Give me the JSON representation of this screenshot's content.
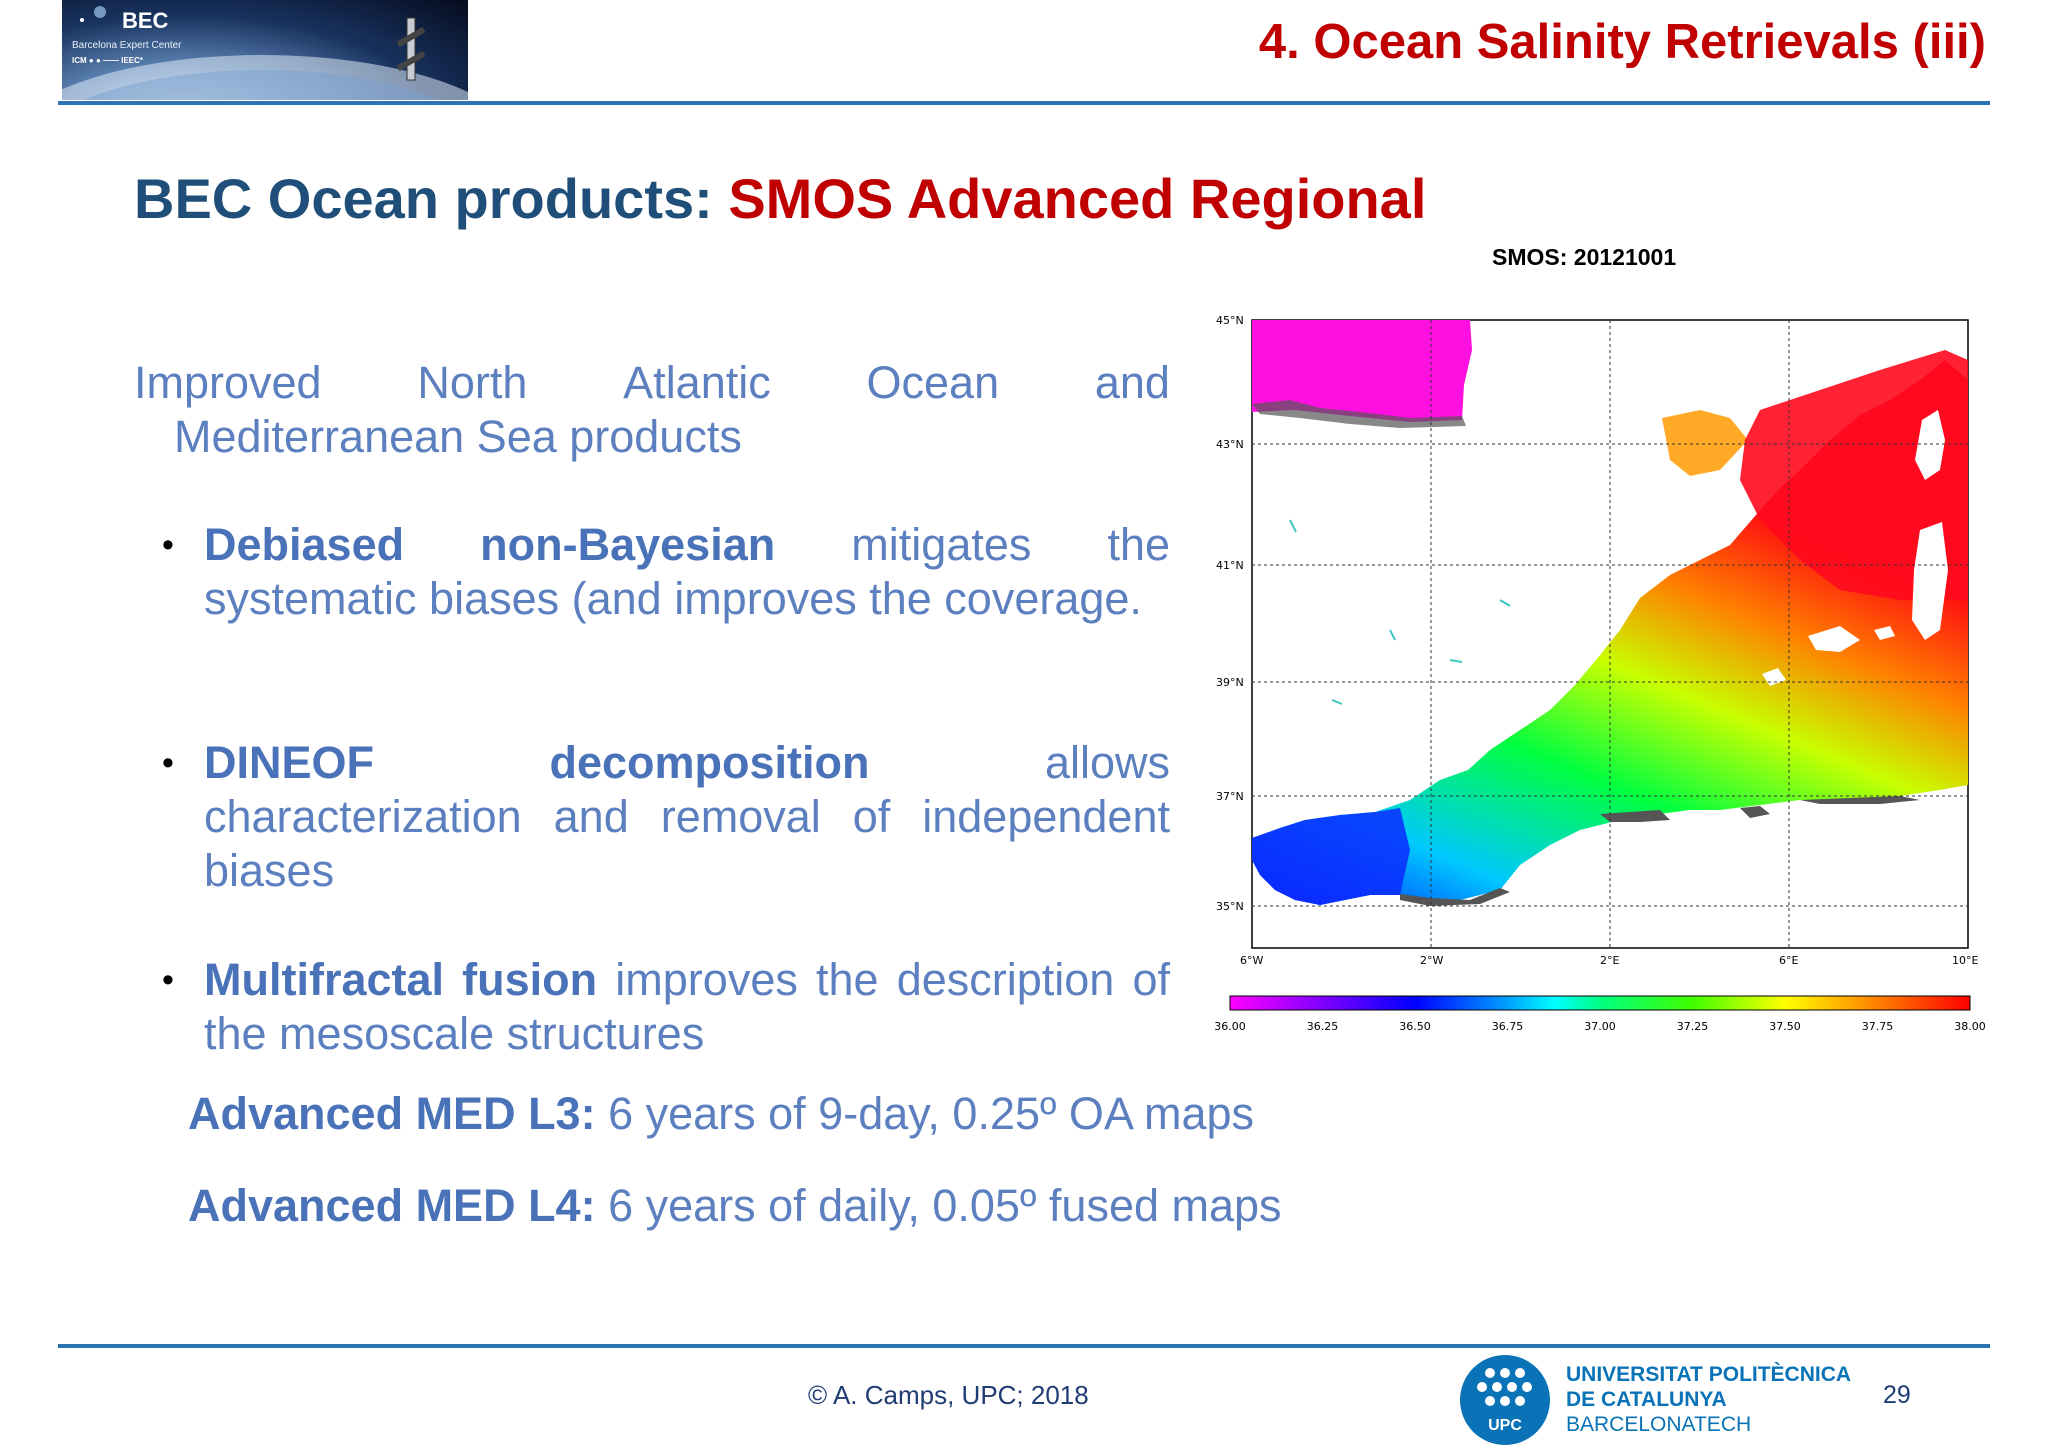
{
  "header": {
    "banner_name": "BEC",
    "banner_subtitle": "Barcelona Expert Center",
    "banner_logos": "ICM  ●  ● ——  IEEC*",
    "slide_title": "4. Ocean Salinity Retrievals (iii)"
  },
  "main": {
    "title_part1": "BEC Ocean products: ",
    "title_part2": "SMOS Advanced Regional",
    "intro_words": [
      "Improved",
      "North",
      "Atlantic",
      "Ocean",
      "and"
    ],
    "intro_line2": "Mediterranean Sea products",
    "bullets": [
      {
        "bold": "Debiased non-Bayesian",
        "rest": " mitigates the systematic biases (and improves the coverage."
      },
      {
        "bold": "DINEOF decomposition",
        "rest": " allows characterization and removal of independent biases"
      },
      {
        "bold": "Multifractal fusion",
        "rest": " improves the description of the mesoscale structures"
      }
    ],
    "advanced": [
      {
        "bold": "Advanced  MED L3:",
        "rest": " 6 years of 9-day, 0.25º OA maps"
      },
      {
        "bold": "Advanced MED L4:",
        "rest": " 6 years of daily, 0.05º fused maps"
      }
    ]
  },
  "map": {
    "title": "SMOS: 20121001",
    "lat_ticks": [
      "45°N",
      "43°N",
      "41°N",
      "39°N",
      "37°N",
      "35°N"
    ],
    "lon_ticks": [
      "6°W",
      "2°W",
      "2°E",
      "6°E",
      "10°E"
    ],
    "colorbar_ticks": [
      "36.00",
      "36.25",
      "36.50",
      "36.75",
      "37.00",
      "37.25",
      "37.50",
      "37.75",
      "38.00"
    ],
    "colorbar_range": [
      36.0,
      38.0
    ],
    "colors": {
      "low": "#ff00ff",
      "mid": "#00ff40",
      "high": "#ff0000"
    }
  },
  "footer": {
    "copyright": "© A. Camps, UPC; 2018",
    "upc_abbrev": "UPC",
    "university_line1": "UNIVERSITAT POLITÈCNICA",
    "university_line2": "DE CATALUNYA",
    "university_line3": "BARCELONATECH",
    "page_number": "29"
  }
}
